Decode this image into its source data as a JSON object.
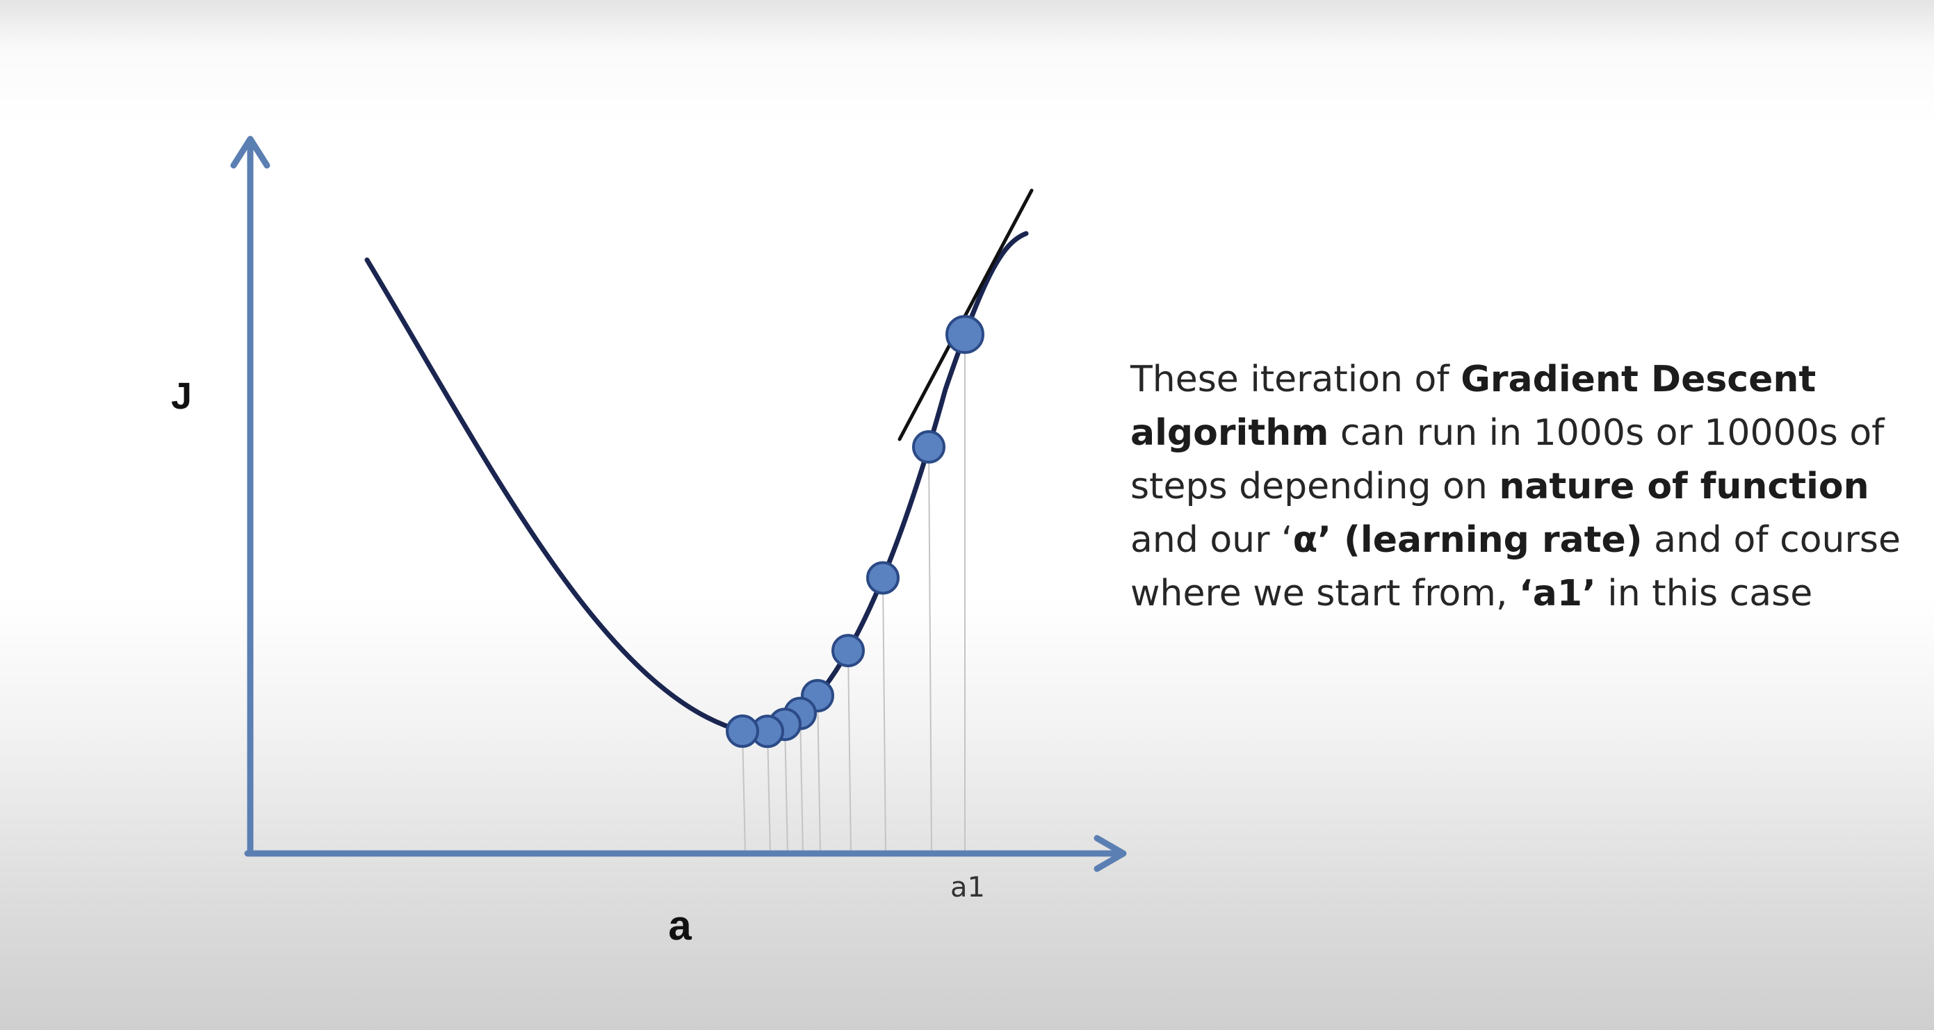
{
  "diagram": {
    "y_axis_label": "J",
    "x_axis_label": "a",
    "start_point_label": "a1",
    "steps": [
      1388,
      1336,
      1270,
      1220,
      1176,
      1151,
      1129,
      1104,
      1068
    ]
  },
  "description": {
    "segments": [
      {
        "text": "These iteration of ",
        "bold": false
      },
      {
        "text": "Gradient Descent algorithm",
        "bold": true
      },
      {
        "text": " can run in 1000s or 10000s of steps depending on ",
        "bold": false
      },
      {
        "text": "nature of function",
        "bold": true
      },
      {
        "text": " and our ‘",
        "bold": false
      },
      {
        "text": "α’ (learning rate)",
        "bold": true
      },
      {
        "text": " and of course where we start from, ",
        "bold": false
      },
      {
        "text": "‘a1’",
        "bold": true
      },
      {
        "text": " in this case",
        "bold": false
      }
    ]
  },
  "colors": {
    "axis": "#5b7fb3",
    "curve": "#1a2550",
    "tangent": "#111111",
    "point_fill": "#5a82c0",
    "point_stroke": "#2b4a86",
    "drop_line": "#c4c4c4"
  }
}
